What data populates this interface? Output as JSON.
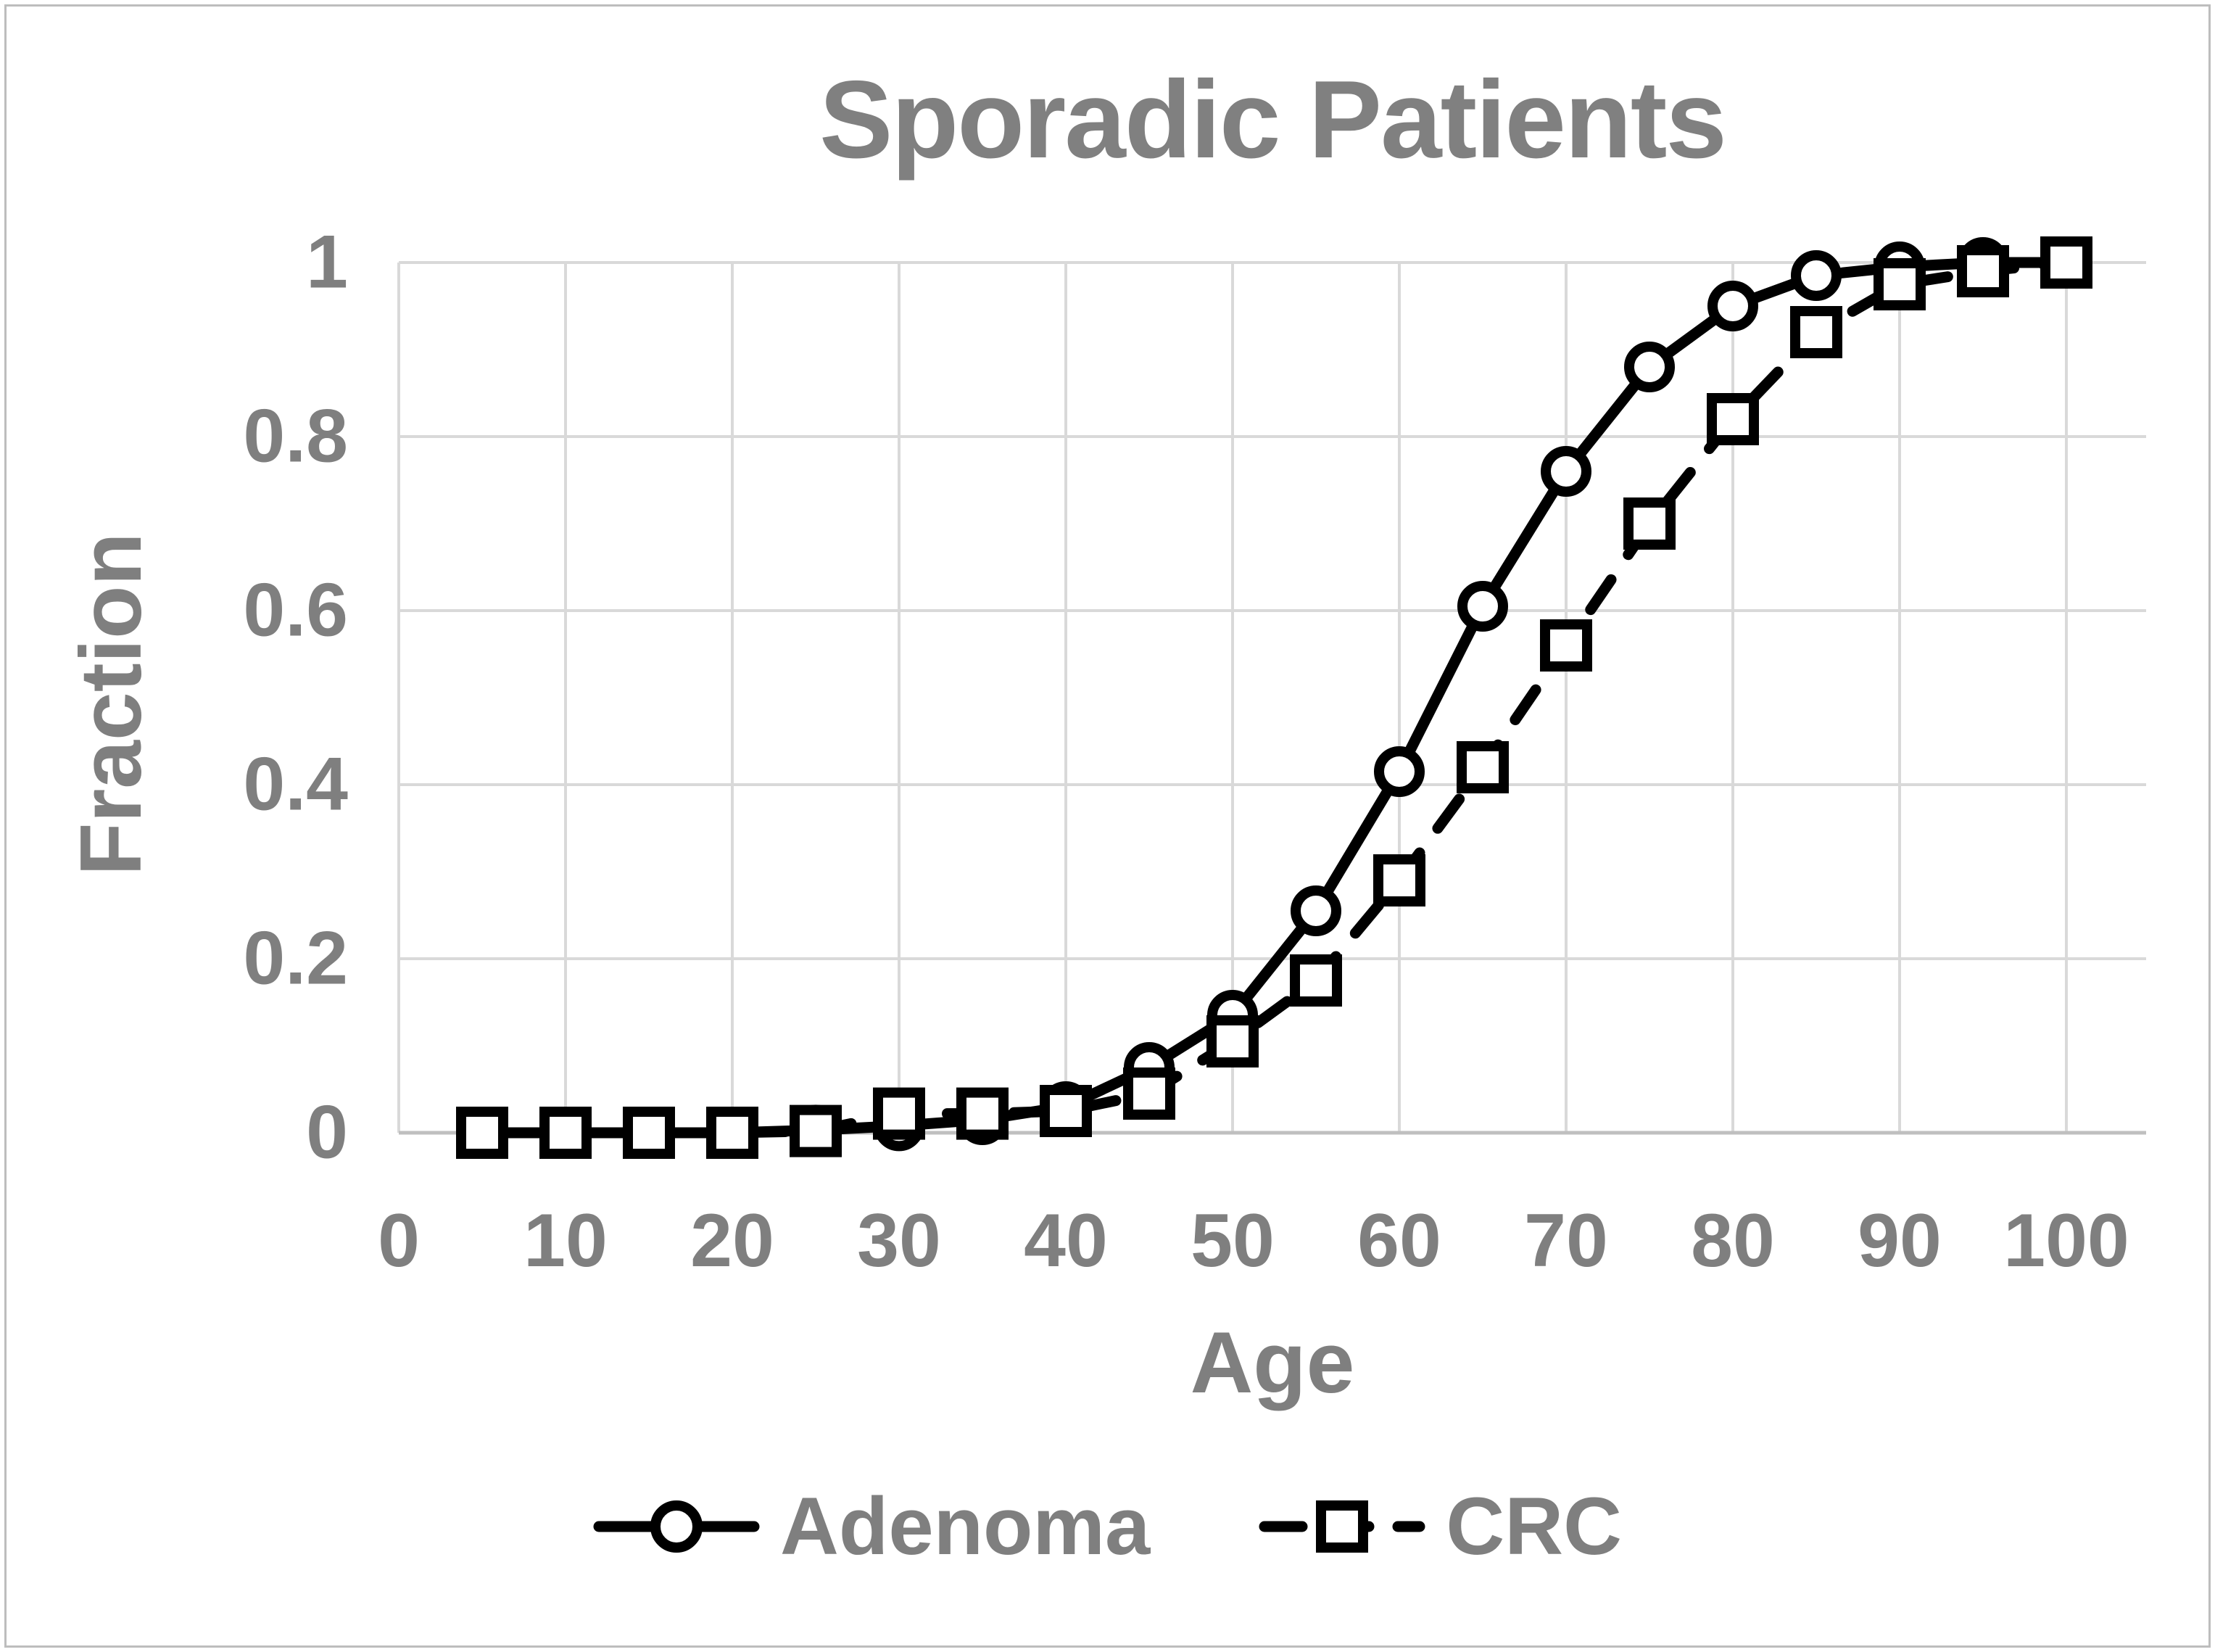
{
  "chart": {
    "title": "Sporadic Patients",
    "x_axis_title": "Age",
    "y_axis_title": "Fraction",
    "x_tick_labels": [
      "0",
      "10",
      "20",
      "30",
      "40",
      "50",
      "60",
      "70",
      "80",
      "90",
      "100"
    ],
    "y_tick_labels": [
      "1",
      "0.8",
      "0.6",
      "0.4",
      "0.2",
      "0"
    ],
    "colors": {
      "series": "#000000",
      "text": "#7f7f7f",
      "gridline": "#d9d9d9",
      "axis_line": "#bfbfbf",
      "border": "#bdbdbd",
      "background": "#ffffff"
    }
  },
  "legend": {
    "adenoma_label": "Adenoma",
    "crc_label": "CRC"
  },
  "chart_data": {
    "type": "line",
    "title": "Sporadic Patients",
    "xlabel": "Age",
    "ylabel": "Fraction",
    "xlim": [
      0,
      105
    ],
    "ylim": [
      0,
      1
    ],
    "x_ticks": [
      0,
      10,
      20,
      30,
      40,
      50,
      60,
      70,
      80,
      90,
      100
    ],
    "y_ticks": [
      0,
      0.2,
      0.4,
      0.6,
      0.8,
      1
    ],
    "grid": true,
    "legend_position": "bottom",
    "x": [
      5,
      10,
      15,
      20,
      25,
      30,
      35,
      40,
      45,
      50,
      55,
      60,
      65,
      70,
      75,
      80,
      85,
      90,
      95,
      100
    ],
    "series": [
      {
        "name": "Adenoma",
        "line_style": "solid",
        "marker": "circle",
        "values": [
          0,
          0,
          0,
          0,
          0.003,
          0.008,
          0.015,
          0.03,
          0.075,
          0.135,
          0.255,
          0.415,
          0.605,
          0.76,
          0.88,
          0.95,
          0.985,
          0.995,
          1,
          1
        ]
      },
      {
        "name": "CRC",
        "line_style": "dashed",
        "marker": "square",
        "values": [
          0,
          0,
          0,
          0,
          0.002,
          0.022,
          0.022,
          0.025,
          0.045,
          0.105,
          0.175,
          0.29,
          0.42,
          0.56,
          0.7,
          0.82,
          0.92,
          0.975,
          0.99,
          1
        ]
      }
    ]
  }
}
